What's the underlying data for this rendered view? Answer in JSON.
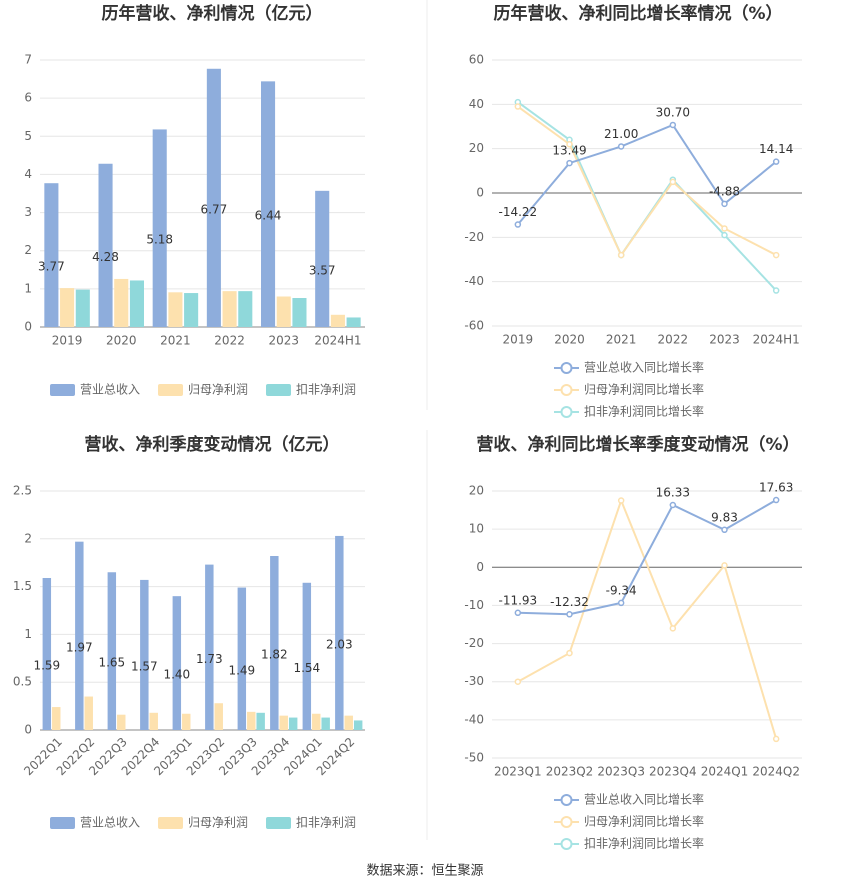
{
  "chart_data": [
    {
      "type": "bar",
      "title": "历年营收、净利情况（亿元）",
      "categories": [
        "2019",
        "2020",
        "2021",
        "2022",
        "2023",
        "2024H1"
      ],
      "series": [
        {
          "name": "营业总收入",
          "color": "#8eaddc",
          "values": [
            3.77,
            4.28,
            5.18,
            6.77,
            6.44,
            3.57
          ]
        },
        {
          "name": "归母净利润",
          "color": "#fde1ae",
          "values": [
            1.02,
            1.26,
            0.91,
            0.94,
            0.8,
            0.32
          ]
        },
        {
          "name": "扣非净利润",
          "color": "#8fd8da",
          "values": [
            0.98,
            1.22,
            0.89,
            0.94,
            0.76,
            0.25
          ]
        }
      ],
      "ylim": [
        0,
        7
      ],
      "yticks": [
        0,
        1,
        2,
        3,
        4,
        5,
        6,
        7
      ],
      "grid": true
    },
    {
      "type": "line",
      "title": "历年营收、净利同比增长率情况（%）",
      "categories": [
        "2019",
        "2020",
        "2021",
        "2022",
        "2023",
        "2024H1"
      ],
      "series": [
        {
          "name": "营业总收入同比增长率",
          "color": "#8eaddc",
          "values": [
            -14.22,
            13.49,
            21.0,
            30.7,
            -4.88,
            14.14
          ],
          "value_labels": [
            "-14.22",
            "13.49",
            "21.00",
            "30.70",
            "-4.88",
            "14.14"
          ]
        },
        {
          "name": "归母净利润同比增长率",
          "color": "#fde1ae",
          "values": [
            39,
            22,
            -28,
            5,
            -16,
            -28
          ]
        },
        {
          "name": "扣非净利润同比增长率",
          "color": "#a6e3e3",
          "values": [
            41,
            24,
            -28,
            6,
            -19,
            -44
          ]
        }
      ],
      "ylim": [
        -60,
        60
      ],
      "yticks": [
        -60,
        -40,
        -20,
        0,
        20,
        40,
        60
      ],
      "grid": true
    },
    {
      "type": "bar",
      "title": "营收、净利季度变动情况（亿元）",
      "categories": [
        "2022Q1",
        "2022Q2",
        "2022Q3",
        "2022Q4",
        "2023Q1",
        "2023Q2",
        "2023Q3",
        "2023Q4",
        "2024Q1",
        "2024Q2"
      ],
      "series": [
        {
          "name": "营业总收入",
          "color": "#8eaddc",
          "values": [
            1.59,
            1.97,
            1.65,
            1.57,
            1.4,
            1.73,
            1.49,
            1.82,
            1.54,
            2.03
          ],
          "value_labels": [
            "1.59",
            "1.97",
            "1.65",
            "1.57",
            "1.40",
            "1.73",
            "1.49",
            "1.82",
            "1.54",
            "2.03"
          ]
        },
        {
          "name": "归母净利润",
          "color": "#fde1ae",
          "values": [
            0.24,
            0.35,
            0.16,
            0.18,
            0.17,
            0.28,
            0.19,
            0.15,
            0.17,
            0.15
          ]
        },
        {
          "name": "扣非净利润",
          "color": "#8fd8da",
          "values": [
            null,
            null,
            null,
            null,
            null,
            null,
            0.18,
            0.13,
            0.13,
            0.1
          ]
        }
      ],
      "ylim": [
        0,
        2.5
      ],
      "yticks": [
        0,
        0.5,
        1,
        1.5,
        2,
        2.5
      ],
      "grid": true
    },
    {
      "type": "line",
      "title": "营收、净利同比增长率季度变动情况（%）",
      "categories": [
        "2023Q1",
        "2023Q2",
        "2023Q3",
        "2023Q4",
        "2024Q1",
        "2024Q2"
      ],
      "series": [
        {
          "name": "营业总收入同比增长率",
          "color": "#8eaddc",
          "values": [
            -11.93,
            -12.32,
            -9.34,
            16.33,
            9.83,
            17.63
          ]
        },
        {
          "name": "归母净利润同比增长率",
          "color": "#fde1ae",
          "values": [
            -30,
            -22.5,
            17.5,
            -16,
            0.5,
            -45
          ]
        },
        {
          "name": "扣非净利润同比增长率",
          "color": "#a6e3e3",
          "values": [
            null,
            null,
            null,
            null,
            null,
            null
          ]
        }
      ],
      "ylim": [
        -50,
        20
      ],
      "yticks": [
        -50,
        -40,
        -30,
        -20,
        -10,
        0,
        10,
        20
      ],
      "grid": true
    }
  ],
  "source": "数据来源：恒生聚源"
}
